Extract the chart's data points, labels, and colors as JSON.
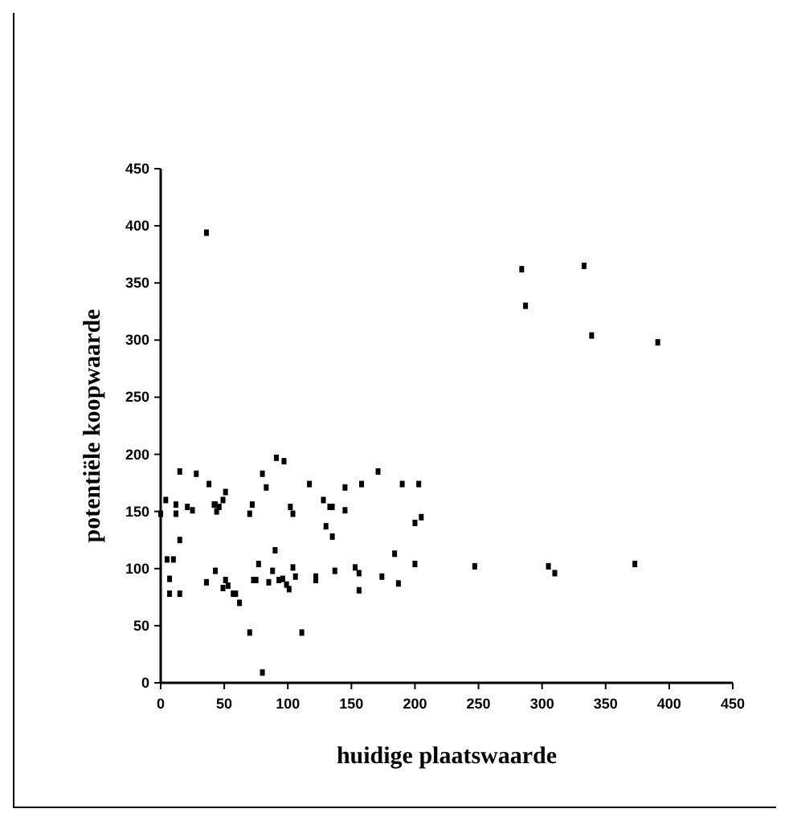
{
  "chart_data": {
    "type": "scatter",
    "xlabel": "huidige plaatswaarde",
    "ylabel": "potentiële koopwaarde",
    "xlim": [
      0,
      450
    ],
    "ylim": [
      0,
      450
    ],
    "xticks": [
      0,
      50,
      100,
      150,
      200,
      250,
      300,
      350,
      400,
      450
    ],
    "yticks": [
      0,
      50,
      100,
      150,
      200,
      250,
      300,
      350,
      400,
      450
    ],
    "grid": false,
    "marker": "square",
    "series": [
      {
        "color": "#000000",
        "x": [
          0,
          4,
          5,
          10,
          7,
          7,
          15,
          12,
          12,
          15,
          15,
          21,
          25,
          28,
          36,
          36,
          38,
          42,
          43,
          44,
          46,
          49,
          51,
          43,
          49,
          51,
          53,
          57,
          59,
          62,
          70,
          72,
          70,
          73,
          75,
          77,
          80,
          83,
          80,
          85,
          88,
          90,
          91,
          97,
          93,
          96,
          99,
          101,
          102,
          104,
          104,
          106,
          111,
          117,
          122,
          122,
          128,
          130,
          133,
          135,
          135,
          137,
          145,
          145,
          153,
          156,
          156,
          158,
          171,
          174,
          184,
          187,
          190,
          200,
          200,
          203,
          205,
          247,
          284,
          287,
          305,
          310,
          333,
          339,
          373,
          391
        ],
        "values": [
          148,
          160,
          108,
          108,
          91,
          78,
          78,
          148,
          156,
          185,
          125,
          154,
          151,
          183,
          394,
          88,
          174,
          156,
          156,
          150,
          154,
          160,
          167,
          98,
          83,
          90,
          85,
          78,
          78,
          70,
          148,
          156,
          44,
          90,
          90,
          104,
          183,
          171,
          9,
          88,
          98,
          116,
          197,
          194,
          90,
          91,
          86,
          82,
          154,
          148,
          101,
          93,
          44,
          174,
          93,
          90,
          160,
          137,
          154,
          154,
          128,
          98,
          171,
          151,
          101,
          96,
          81,
          174,
          185,
          93,
          113,
          87,
          174,
          104,
          140,
          174,
          145,
          102,
          362,
          330,
          102,
          96,
          365,
          304,
          104,
          298
        ]
      }
    ]
  }
}
